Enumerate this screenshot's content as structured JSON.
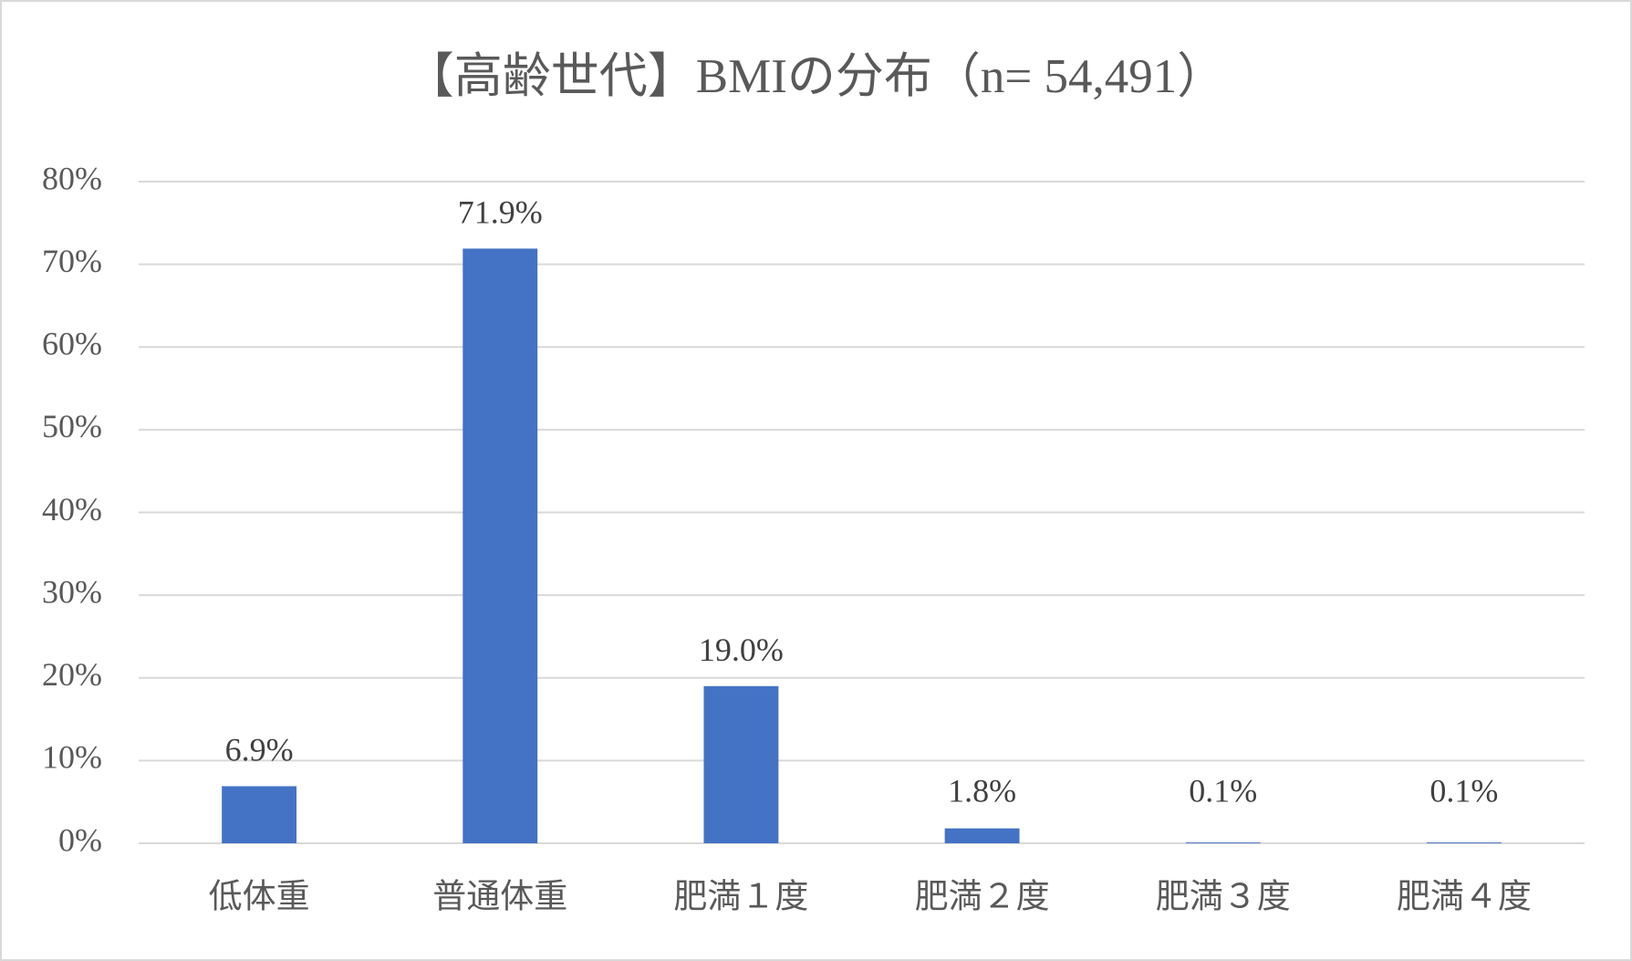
{
  "chart_data": {
    "type": "bar",
    "title": "【高齢世代】BMIの分布（n= 54,491）",
    "categories": [
      "低体重",
      "普通体重",
      "肥満１度",
      "肥満２度",
      "肥満３度",
      "肥満４度"
    ],
    "values": [
      6.9,
      71.9,
      19.0,
      1.8,
      0.1,
      0.1
    ],
    "value_labels": [
      "6.9%",
      "71.9%",
      "19.0%",
      "1.8%",
      "0.1%",
      "0.1%"
    ],
    "color": "#4472c4",
    "ylim": [
      0,
      80
    ],
    "yticks": [
      {
        "value": 0,
        "label": "0%"
      },
      {
        "value": 10,
        "label": "10%"
      },
      {
        "value": 20,
        "label": "20%"
      },
      {
        "value": 30,
        "label": "30%"
      },
      {
        "value": 40,
        "label": "40%"
      },
      {
        "value": 50,
        "label": "50%"
      },
      {
        "value": 60,
        "label": "60%"
      },
      {
        "value": 70,
        "label": "70%"
      },
      {
        "value": 80,
        "label": "80%"
      }
    ],
    "grid": true
  }
}
